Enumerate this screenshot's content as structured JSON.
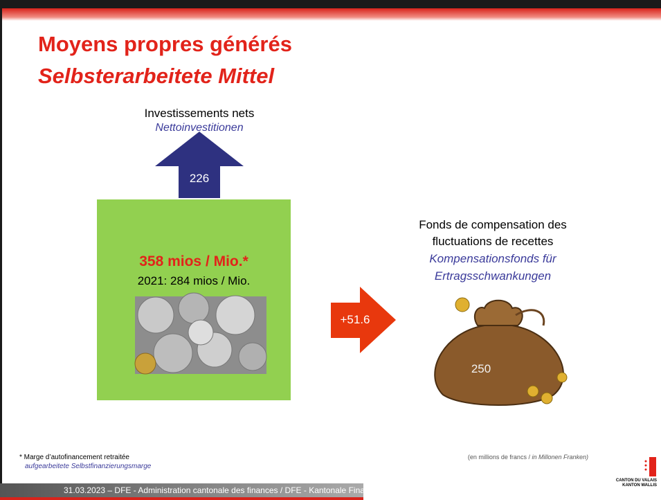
{
  "title": {
    "fr": "Moyens propres générés",
    "de": "Selbsterarbeitete Mittel"
  },
  "investments": {
    "fr": "Investissements nets",
    "de": "Nettoinvestitionen",
    "value": "226"
  },
  "self_funding": {
    "main": "358 mios / Mio.*",
    "previous": "2021: 284 mios / Mio."
  },
  "transfer": {
    "value": "+51.6"
  },
  "fund": {
    "fr": [
      "Fonds de compensation des",
      "fluctuations de recettes"
    ],
    "de": [
      "Kompensationsfonds für",
      "Ertragsschwankungen"
    ],
    "value": "250"
  },
  "footnote": {
    "fr": "* Marge d’autofinancement retraitée",
    "de": "aufgearbeitete Selbstfinanzierungsmarge"
  },
  "units": {
    "fr": "(en millions de francs / ",
    "de": "in Millonen Franken)"
  },
  "footer": "31.03.2023 – DFE - Administration cantonale des finances / DFE - Kantonale Finanzverwaltung",
  "logo": [
    "CANTON DU VALAIS",
    "KANTON WALLIS"
  ]
}
